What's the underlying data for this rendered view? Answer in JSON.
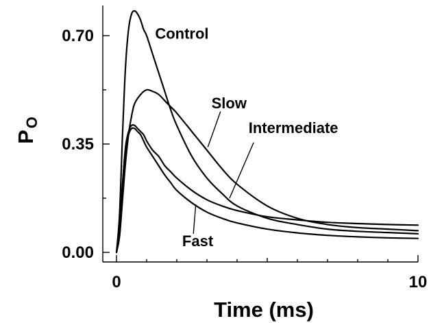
{
  "chart_data": {
    "type": "line",
    "xlabel": "Time (ms)",
    "ylabel": "P",
    "ylabel_sub": "O",
    "xlim": [
      0,
      10
    ],
    "ylim": [
      0,
      0.77
    ],
    "x_ticks": [
      0,
      10
    ],
    "x_tick_labels": [
      "0",
      "10"
    ],
    "y_ticks": [
      0.0,
      0.35,
      0.7
    ],
    "y_tick_labels": [
      "0.00",
      "0.35",
      "0.70"
    ],
    "grid": false,
    "legend": "none",
    "series": [
      {
        "name": "Control",
        "x": [
          0,
          0.1,
          0.2,
          0.3,
          0.4,
          0.5,
          0.6,
          0.7,
          0.8,
          0.9,
          1.0,
          1.2,
          1.4,
          1.6,
          1.8,
          2.0,
          2.5,
          3.0,
          3.5,
          4.0,
          5.0,
          6.0,
          7.0,
          8.0,
          9.0,
          10.0
        ],
        "values": [
          0.0,
          0.12,
          0.38,
          0.6,
          0.72,
          0.77,
          0.78,
          0.77,
          0.75,
          0.72,
          0.7,
          0.64,
          0.58,
          0.52,
          0.46,
          0.41,
          0.31,
          0.24,
          0.19,
          0.15,
          0.11,
          0.09,
          0.075,
          0.068,
          0.064,
          0.06
        ]
      },
      {
        "name": "Slow",
        "x": [
          0,
          0.1,
          0.2,
          0.3,
          0.4,
          0.5,
          0.6,
          0.8,
          1.0,
          1.2,
          1.4,
          1.6,
          1.8,
          2.0,
          2.5,
          3.0,
          3.5,
          4.0,
          5.0,
          6.0,
          7.0,
          8.0,
          9.0,
          10.0
        ],
        "values": [
          0.0,
          0.05,
          0.17,
          0.29,
          0.38,
          0.44,
          0.48,
          0.51,
          0.525,
          0.52,
          0.51,
          0.49,
          0.47,
          0.45,
          0.39,
          0.33,
          0.27,
          0.22,
          0.15,
          0.11,
          0.09,
          0.08,
          0.075,
          0.07
        ]
      },
      {
        "name": "Intermediate",
        "x": [
          0,
          0.1,
          0.2,
          0.3,
          0.4,
          0.5,
          0.6,
          0.7,
          0.8,
          0.9,
          1.0,
          1.2,
          1.4,
          1.6,
          1.8,
          2.0,
          2.5,
          3.0,
          3.5,
          4.0,
          5.0,
          6.0,
          7.0,
          8.0,
          9.0,
          10.0
        ],
        "values": [
          0.0,
          0.07,
          0.22,
          0.34,
          0.39,
          0.41,
          0.41,
          0.4,
          0.39,
          0.38,
          0.36,
          0.33,
          0.31,
          0.28,
          0.26,
          0.24,
          0.2,
          0.17,
          0.15,
          0.135,
          0.115,
          0.105,
          0.097,
          0.093,
          0.09,
          0.088
        ]
      },
      {
        "name": "Fast",
        "x": [
          0,
          0.1,
          0.2,
          0.3,
          0.4,
          0.5,
          0.6,
          0.7,
          0.8,
          0.9,
          1.0,
          1.2,
          1.4,
          1.6,
          1.8,
          2.0,
          2.5,
          3.0,
          3.5,
          4.0,
          5.0,
          6.0,
          7.0,
          8.0,
          9.0,
          10.0
        ],
        "values": [
          0.0,
          0.07,
          0.22,
          0.33,
          0.38,
          0.4,
          0.4,
          0.39,
          0.38,
          0.36,
          0.34,
          0.31,
          0.28,
          0.25,
          0.225,
          0.2,
          0.16,
          0.13,
          0.11,
          0.095,
          0.075,
          0.063,
          0.055,
          0.05,
          0.047,
          0.045
        ]
      }
    ],
    "annotations": [
      {
        "text": "Control",
        "series": "Control",
        "x": 1.28,
        "y": 0.69
      },
      {
        "text": "Slow",
        "series": "Slow",
        "x": 3.03,
        "y": 0.34
      },
      {
        "text": "Intermediate",
        "series": "Intermediate",
        "x": 3.75,
        "y": 0.175
      },
      {
        "text": "Fast",
        "series": "Fast",
        "x": 2.63,
        "y": 0.155
      }
    ]
  }
}
